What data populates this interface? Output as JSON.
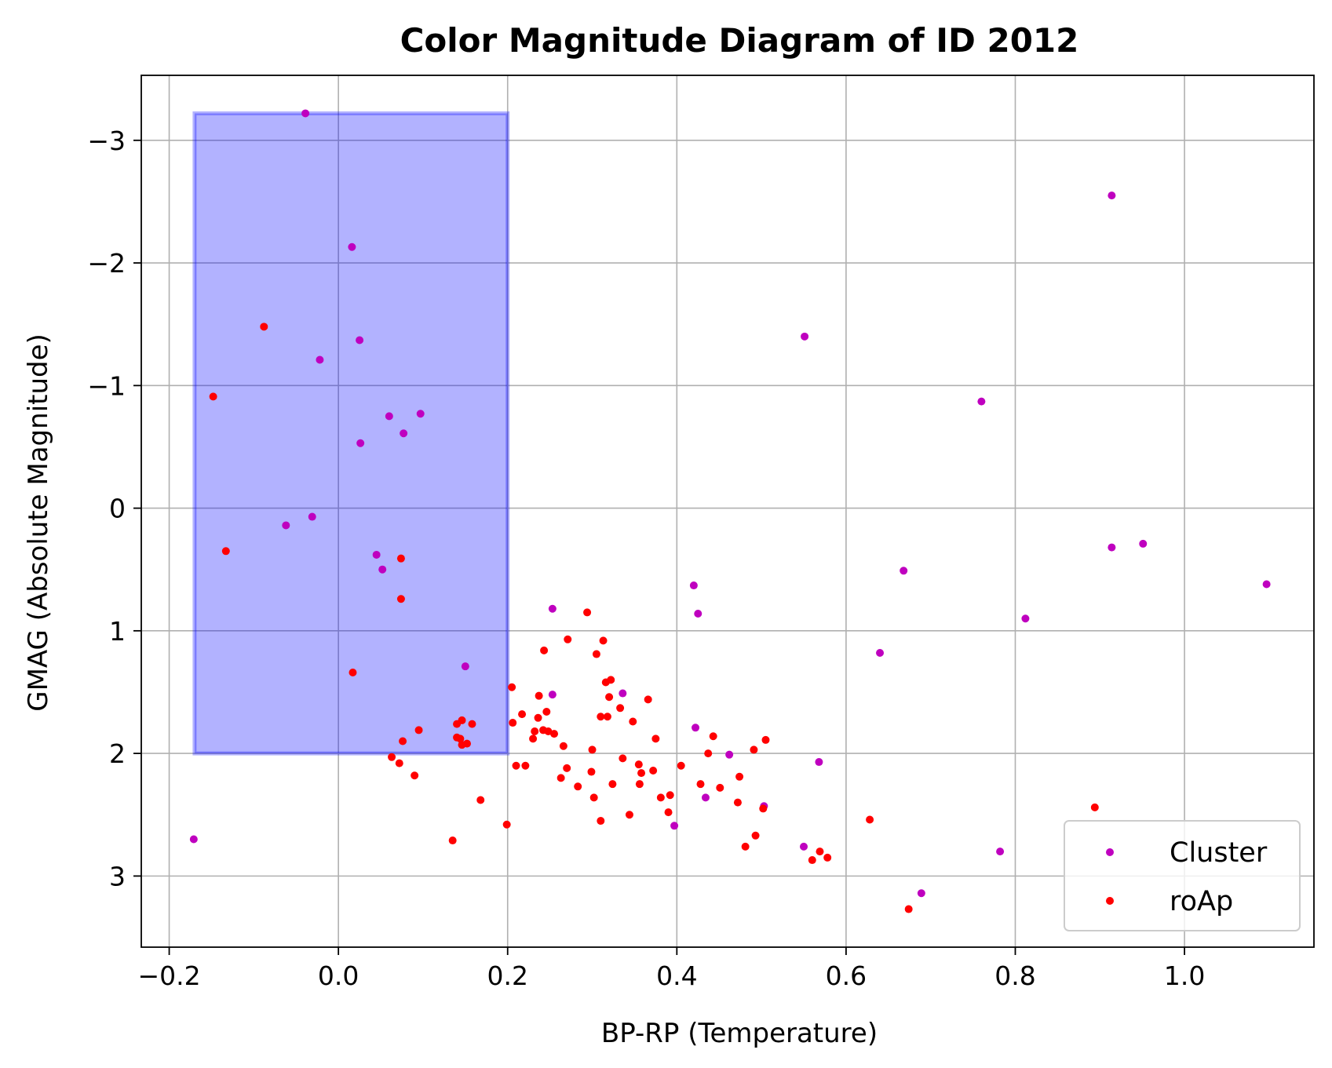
{
  "chart_data": {
    "type": "scatter",
    "title": "Color Magnitude Diagram of ID 2012",
    "xlabel": "BP-RP (Temperature)",
    "ylabel": "GMAG (Absolute Magnitude)",
    "xlim": [
      -0.233,
      1.153
    ],
    "ylim": [
      3.58,
      -3.53
    ],
    "y_inverted": true,
    "grid": true,
    "legend_position": "lower-right",
    "x_ticks": [
      -0.2,
      0.0,
      0.2,
      0.4,
      0.6,
      0.8,
      1.0
    ],
    "x_tick_labels": [
      "−0.2",
      "0.0",
      "0.2",
      "0.4",
      "0.6",
      "0.8",
      "1.0"
    ],
    "y_ticks": [
      -3,
      -2,
      -1,
      0,
      1,
      2,
      3
    ],
    "y_tick_labels": [
      "−3",
      "−2",
      "−1",
      "0",
      "1",
      "2",
      "3"
    ],
    "selection_box": {
      "x_range": [
        -0.17,
        0.2
      ],
      "y_range": [
        -3.22,
        2.0
      ],
      "color": "#0000ff",
      "alpha": 0.3
    },
    "series": [
      {
        "name": "Cluster",
        "color": "#bf00bf",
        "points": [
          [
            -0.039,
            -3.22
          ],
          [
            0.016,
            -2.13
          ],
          [
            0.025,
            -1.37
          ],
          [
            -0.022,
            -1.21
          ],
          [
            0.06,
            -0.75
          ],
          [
            0.097,
            -0.77
          ],
          [
            0.077,
            -0.61
          ],
          [
            0.026,
            -0.53
          ],
          [
            -0.062,
            0.14
          ],
          [
            -0.031,
            0.07
          ],
          [
            0.045,
            0.38
          ],
          [
            0.052,
            0.5
          ],
          [
            0.15,
            1.29
          ],
          [
            -0.171,
            2.7
          ],
          [
            0.914,
            -2.55
          ],
          [
            0.551,
            -1.4
          ],
          [
            0.76,
            -0.87
          ],
          [
            0.914,
            0.32
          ],
          [
            0.951,
            0.29
          ],
          [
            0.668,
            0.51
          ],
          [
            1.097,
            0.62
          ],
          [
            0.42,
            0.63
          ],
          [
            0.425,
            0.86
          ],
          [
            0.253,
            0.82
          ],
          [
            0.812,
            0.9
          ],
          [
            0.64,
            1.18
          ],
          [
            0.253,
            1.52
          ],
          [
            0.336,
            1.51
          ],
          [
            0.422,
            1.79
          ],
          [
            0.462,
            2.01
          ],
          [
            0.568,
            2.07
          ],
          [
            0.434,
            2.36
          ],
          [
            0.503,
            2.43
          ],
          [
            0.397,
            2.59
          ],
          [
            0.55,
            2.76
          ],
          [
            0.782,
            2.8
          ],
          [
            0.689,
            3.14
          ]
        ]
      },
      {
        "name": "roAp",
        "color": "#ff0000",
        "points": [
          [
            -0.088,
            -1.48
          ],
          [
            -0.148,
            -0.91
          ],
          [
            -0.133,
            0.35
          ],
          [
            0.074,
            0.41
          ],
          [
            0.074,
            0.74
          ],
          [
            0.017,
            1.34
          ],
          [
            0.146,
            1.73
          ],
          [
            0.158,
            1.76
          ],
          [
            0.14,
            1.76
          ],
          [
            0.14,
            1.87
          ],
          [
            0.144,
            1.88
          ],
          [
            0.146,
            1.93
          ],
          [
            0.152,
            1.92
          ],
          [
            0.095,
            1.81
          ],
          [
            0.076,
            1.9
          ],
          [
            0.063,
            2.03
          ],
          [
            0.072,
            2.08
          ],
          [
            0.09,
            2.18
          ],
          [
            0.168,
            2.38
          ],
          [
            0.135,
            2.71
          ],
          [
            0.199,
            2.58
          ],
          [
            0.205,
            1.46
          ],
          [
            0.206,
            1.75
          ],
          [
            0.217,
            1.68
          ],
          [
            0.21,
            2.1
          ],
          [
            0.221,
            2.1
          ],
          [
            0.23,
            1.88
          ],
          [
            0.232,
            1.82
          ],
          [
            0.236,
            1.71
          ],
          [
            0.237,
            1.53
          ],
          [
            0.242,
            1.81
          ],
          [
            0.248,
            1.82
          ],
          [
            0.246,
            1.66
          ],
          [
            0.243,
            1.16
          ],
          [
            0.255,
            1.84
          ],
          [
            0.263,
            2.2
          ],
          [
            0.266,
            1.94
          ],
          [
            0.27,
            2.12
          ],
          [
            0.271,
            1.07
          ],
          [
            0.283,
            2.27
          ],
          [
            0.294,
            0.85
          ],
          [
            0.299,
            2.15
          ],
          [
            0.3,
            1.97
          ],
          [
            0.302,
            2.36
          ],
          [
            0.305,
            1.19
          ],
          [
            0.31,
            2.55
          ],
          [
            0.31,
            1.7
          ],
          [
            0.313,
            1.08
          ],
          [
            0.316,
            1.42
          ],
          [
            0.318,
            1.7
          ],
          [
            0.32,
            1.54
          ],
          [
            0.322,
            1.4
          ],
          [
            0.324,
            2.25
          ],
          [
            0.333,
            1.63
          ],
          [
            0.336,
            2.04
          ],
          [
            0.344,
            2.5
          ],
          [
            0.348,
            1.74
          ],
          [
            0.355,
            2.09
          ],
          [
            0.356,
            2.25
          ],
          [
            0.358,
            2.16
          ],
          [
            0.366,
            1.56
          ],
          [
            0.372,
            2.14
          ],
          [
            0.375,
            1.88
          ],
          [
            0.381,
            2.36
          ],
          [
            0.39,
            2.48
          ],
          [
            0.392,
            2.34
          ],
          [
            0.405,
            2.1
          ],
          [
            0.428,
            2.25
          ],
          [
            0.437,
            2.0
          ],
          [
            0.443,
            1.86
          ],
          [
            0.451,
            2.28
          ],
          [
            0.472,
            2.4
          ],
          [
            0.474,
            2.19
          ],
          [
            0.481,
            2.76
          ],
          [
            0.491,
            1.97
          ],
          [
            0.493,
            2.67
          ],
          [
            0.502,
            2.45
          ],
          [
            0.505,
            1.89
          ],
          [
            0.56,
            2.87
          ],
          [
            0.569,
            2.8
          ],
          [
            0.578,
            2.85
          ],
          [
            0.628,
            2.54
          ],
          [
            0.674,
            3.27
          ],
          [
            0.894,
            2.44
          ]
        ]
      }
    ]
  }
}
